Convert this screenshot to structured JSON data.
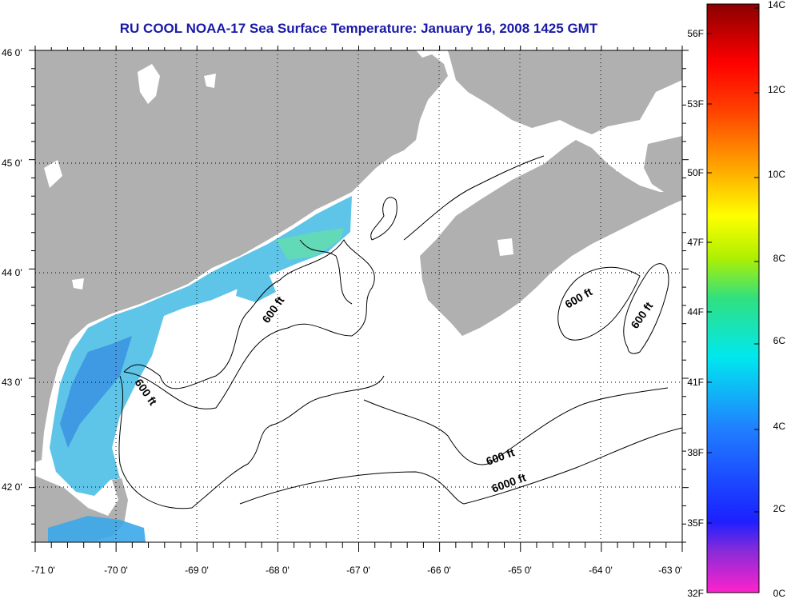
{
  "title": "RU COOL  NOAA-17  Sea Surface Temperature:  January 16, 2008 1425 GMT",
  "map": {
    "lon_labels": [
      "-71 0'",
      "-70 0'",
      "-69 0'",
      "-68 0'",
      "-67 0'",
      "-66 0'",
      "-65 0'",
      "-64 0'",
      "-63 0'"
    ],
    "lat_labels": [
      "46 0'",
      "45 0'",
      "44 0'",
      "43 0'",
      "42 0'"
    ],
    "lon_range": [
      -71,
      -63
    ],
    "lat_range": [
      41.5,
      46
    ],
    "land_color": "#b0b0b0",
    "water_color": "#ffffff",
    "contour_labels": [
      {
        "text": "600 ft",
        "lon": -67.9,
        "lat": 43.7
      },
      {
        "text": "600 ft",
        "lon": -69.7,
        "lat": 42.85
      },
      {
        "text": "600 ft",
        "lon": -64.1,
        "lat": 43.8
      },
      {
        "text": "600 ft",
        "lon": -63.55,
        "lat": 43.6
      },
      {
        "text": "600 ft",
        "lon": -65.3,
        "lat": 42.3
      },
      {
        "text": "6000 ft",
        "lon": -65.1,
        "lat": 42.05
      }
    ]
  },
  "colorbar": {
    "fahrenheit_labels": [
      "56F",
      "53F",
      "50F",
      "47F",
      "44F",
      "41F",
      "38F",
      "35F",
      "32F"
    ],
    "celsius_labels": [
      "14C",
      "12C",
      "10C",
      "8C",
      "6C",
      "4C",
      "2C",
      "0C"
    ],
    "range_c": [
      0,
      14
    ]
  }
}
